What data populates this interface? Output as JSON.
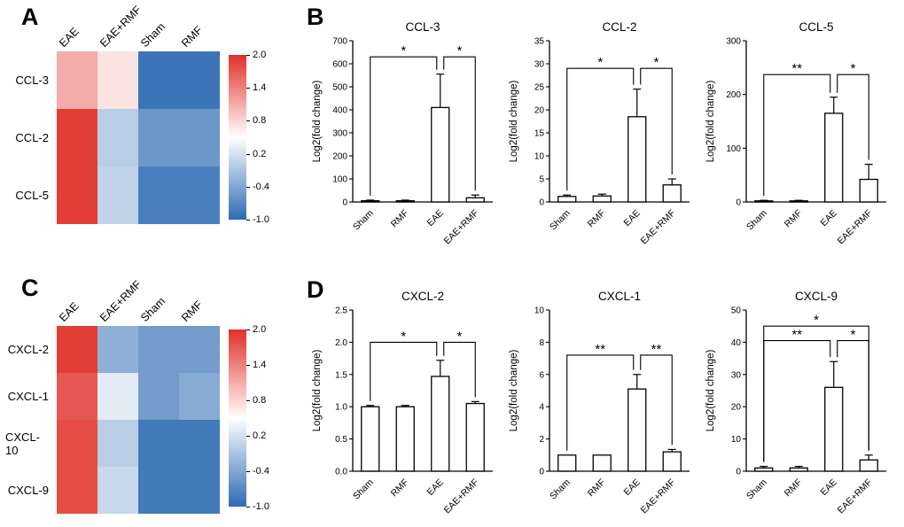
{
  "panels": {
    "a": "A",
    "b": "B",
    "c": "C",
    "d": "D"
  },
  "colormap": {
    "red": "#e03028",
    "mid": "#ffffff",
    "blue": "#2d6bb2",
    "vmin": -1.0,
    "vmid": 0.5,
    "vmax": 2.0
  },
  "chart_data": [
    {
      "type": "heatmap",
      "panel": "A",
      "col_labels": [
        "EAE",
        "EAE+RMF",
        "Sham",
        "RMF"
      ],
      "row_labels": [
        "CCL-3",
        "CCL-2",
        "CCL-5"
      ],
      "values": [
        [
          1.1,
          0.7,
          -0.9,
          -0.9
        ],
        [
          1.9,
          0.0,
          -0.55,
          -0.55
        ],
        [
          1.9,
          0.05,
          -0.8,
          -0.8
        ]
      ],
      "colorbar_ticks": [
        "2.0",
        "1.4",
        "0.8",
        "0.2",
        "-0.4",
        "-1.0"
      ]
    },
    {
      "type": "bar",
      "panel": "B",
      "title": "CCL-3",
      "ylabel": "Log2(fold change)",
      "categories": [
        "Sham",
        "RMF",
        "EAE",
        "EAE+RMF"
      ],
      "values": [
        5,
        5,
        410,
        18
      ],
      "errors": [
        3,
        3,
        145,
        12
      ],
      "ylim": [
        0,
        700
      ],
      "ytick_values": [
        0,
        100,
        200,
        300,
        400,
        500,
        600,
        700
      ],
      "ytick_labels": [
        "0",
        "100",
        "200",
        "300",
        "400",
        "500",
        "600",
        "700"
      ],
      "brackets": [
        {
          "x1": 0,
          "x2": 2,
          "y": 630,
          "label": "*"
        },
        {
          "x1": 2,
          "x2": 3,
          "y": 630,
          "label": "*"
        }
      ]
    },
    {
      "type": "bar",
      "panel": "B",
      "title": "CCL-2",
      "ylabel": "Log2(fold change)",
      "categories": [
        "Sham",
        "RMF",
        "EAE",
        "EAE+RMF"
      ],
      "values": [
        1.2,
        1.3,
        18.5,
        3.7
      ],
      "errors": [
        0.3,
        0.4,
        6,
        1.3
      ],
      "ylim": [
        0,
        35
      ],
      "ytick_values": [
        0,
        5,
        10,
        15,
        20,
        25,
        30,
        35
      ],
      "ytick_labels": [
        "0",
        "5",
        "10",
        "15",
        "20",
        "25",
        "30",
        "35"
      ],
      "brackets": [
        {
          "x1": 0,
          "x2": 2,
          "y": 29,
          "label": "*"
        },
        {
          "x1": 2,
          "x2": 3,
          "y": 29,
          "label": "*"
        }
      ]
    },
    {
      "type": "bar",
      "panel": "B",
      "title": "CCL-5",
      "ylabel": "Log2(fold change)",
      "categories": [
        "Sham",
        "RMF",
        "EAE",
        "EAE+RMF"
      ],
      "values": [
        2,
        2,
        165,
        42
      ],
      "errors": [
        1,
        1,
        30,
        28
      ],
      "ylim": [
        0,
        300
      ],
      "ytick_values": [
        0,
        100,
        200,
        300
      ],
      "ytick_labels": [
        "0",
        "100",
        "200",
        "300"
      ],
      "brackets": [
        {
          "x1": 0,
          "x2": 2,
          "y": 237,
          "label": "**"
        },
        {
          "x1": 2,
          "x2": 3,
          "y": 237,
          "label": "*"
        }
      ]
    },
    {
      "type": "heatmap",
      "panel": "C",
      "col_labels": [
        "EAE",
        "EAE+RMF",
        "Sham",
        "RMF"
      ],
      "row_labels": [
        "CXCL-2",
        "CXCL-1",
        "CXCL-10",
        "CXCL-9"
      ],
      "values": [
        [
          1.9,
          -0.3,
          -0.5,
          -0.5
        ],
        [
          1.7,
          0.3,
          -0.5,
          -0.35
        ],
        [
          1.8,
          0.0,
          -0.85,
          -0.85
        ],
        [
          1.8,
          0.1,
          -0.85,
          -0.85
        ]
      ],
      "colorbar_ticks": [
        "2.0",
        "1.4",
        "0.8",
        "0.2",
        "-0.4",
        "-1.0"
      ]
    },
    {
      "type": "bar",
      "panel": "D",
      "title": "CXCL-2",
      "ylabel": "Log2(fold change)",
      "categories": [
        "Sham",
        "RMF",
        "EAE",
        "EAE+RMF"
      ],
      "values": [
        1.0,
        1.0,
        1.47,
        1.05
      ],
      "errors": [
        0.02,
        0.02,
        0.25,
        0.03
      ],
      "ylim": [
        0,
        2.5
      ],
      "ytick_values": [
        0,
        0.5,
        1,
        1.5,
        2,
        2.5
      ],
      "ytick_labels": [
        "0.0",
        "0.5",
        "1.0",
        "1.5",
        "2.0",
        "2.5"
      ],
      "brackets": [
        {
          "x1": 0,
          "x2": 2,
          "y": 2.0,
          "label": "*"
        },
        {
          "x1": 2,
          "x2": 3,
          "y": 2.0,
          "label": "*"
        }
      ]
    },
    {
      "type": "bar",
      "panel": "D",
      "title": "CXCL-1",
      "ylabel": "Log2(fold change)",
      "categories": [
        "Sham",
        "RMF",
        "EAE",
        "EAE+RMF"
      ],
      "values": [
        1.0,
        1.0,
        5.1,
        1.2
      ],
      "errors": [
        0,
        0,
        0.9,
        0.15
      ],
      "ylim": [
        0,
        10
      ],
      "ytick_values": [
        0,
        2,
        4,
        6,
        8,
        10
      ],
      "ytick_labels": [
        "0",
        "2",
        "4",
        "6",
        "8",
        "10"
      ],
      "brackets": [
        {
          "x1": 0,
          "x2": 2,
          "y": 7.2,
          "label": "**"
        },
        {
          "x1": 2,
          "x2": 3,
          "y": 7.2,
          "label": "**"
        }
      ]
    },
    {
      "type": "bar",
      "panel": "D",
      "title": "CXCL-9",
      "ylabel": "Log2(fold change)",
      "categories": [
        "Sham",
        "RMF",
        "EAE",
        "EAE+RMF"
      ],
      "values": [
        1.0,
        1.0,
        26,
        3.5
      ],
      "errors": [
        0.5,
        0.5,
        8,
        1.5
      ],
      "ylim": [
        0,
        50
      ],
      "ytick_values": [
        0,
        10,
        20,
        30,
        40,
        50
      ],
      "ytick_labels": [
        "0",
        "10",
        "20",
        "30",
        "40",
        "50"
      ],
      "brackets": [
        {
          "x1": 0,
          "x2": 3,
          "y": 45,
          "label": "*"
        },
        {
          "x1": 0,
          "x2": 2,
          "y": 40.5,
          "label": "**"
        },
        {
          "x1": 2,
          "x2": 3,
          "y": 40.5,
          "label": "*"
        }
      ]
    }
  ]
}
